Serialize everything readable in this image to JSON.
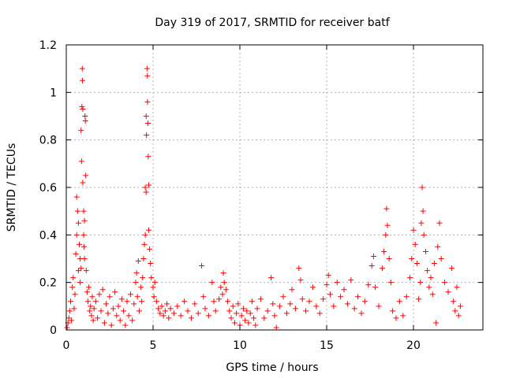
{
  "chart_data": {
    "type": "scatter",
    "title": "Day 319 of 2017, SRMTID for receiver batf",
    "xlabel": "GPS time / hours",
    "ylabel": "SRMTID / TECUs",
    "xlim": [
      0,
      24
    ],
    "ylim": [
      0,
      1.2
    ],
    "xticks": [
      0,
      5,
      10,
      15,
      20
    ],
    "xtick_labels": [
      "0",
      "5",
      "10",
      "15",
      "20"
    ],
    "yticks": [
      0,
      0.2,
      0.4,
      0.6,
      0.8,
      1.0,
      1.2
    ],
    "ytick_labels": [
      "0",
      "0.2",
      "0.4",
      "0.6",
      "0.8",
      "1",
      "1.2"
    ],
    "grid": true,
    "legend": "none",
    "marker": "+",
    "color": "#ff0000",
    "series": [
      {
        "name": "SRMTID",
        "points": [
          [
            0.05,
            0.01
          ],
          [
            0.1,
            0.03
          ],
          [
            0.15,
            0.05
          ],
          [
            0.2,
            0.08
          ],
          [
            0.25,
            0.12
          ],
          [
            0.3,
            0.04
          ],
          [
            0.35,
            0.18
          ],
          [
            0.4,
            0.22
          ],
          [
            0.45,
            0.09
          ],
          [
            0.5,
            0.15
          ],
          [
            0.55,
            0.32
          ],
          [
            0.6,
            0.4
          ],
          [
            0.6,
            0.56
          ],
          [
            0.65,
            0.5
          ],
          [
            0.7,
            0.25
          ],
          [
            0.7,
            0.45
          ],
          [
            0.75,
            0.36
          ],
          [
            0.8,
            0.2
          ],
          [
            0.8,
            0.3
          ],
          [
            0.85,
            0.26
          ],
          [
            0.85,
            0.84
          ],
          [
            0.88,
            0.71
          ],
          [
            0.9,
            0.94
          ],
          [
            0.92,
            1.1
          ],
          [
            0.93,
            1.05
          ],
          [
            0.95,
            0.62
          ],
          [
            0.95,
            0.93
          ],
          [
            1.0,
            0.5
          ],
          [
            1.0,
            0.4
          ],
          [
            1.02,
            0.35
          ],
          [
            1.05,
            0.3
          ],
          [
            1.05,
            0.46
          ],
          [
            1.08,
            0.9
          ],
          [
            1.1,
            0.88
          ],
          [
            1.12,
            0.65
          ],
          [
            1.15,
            0.25
          ],
          [
            1.2,
            0.16
          ],
          [
            1.25,
            0.12
          ],
          [
            1.3,
            0.18
          ],
          [
            1.35,
            0.08
          ],
          [
            1.4,
            0.1
          ],
          [
            1.45,
            0.06
          ],
          [
            1.5,
            0.14
          ],
          [
            1.55,
            0.04
          ],
          [
            1.6,
            0.09
          ],
          [
            1.7,
            0.12
          ],
          [
            1.8,
            0.05
          ],
          [
            1.9,
            0.15
          ],
          [
            2.0,
            0.08
          ],
          [
            2.1,
            0.17
          ],
          [
            2.2,
            0.03
          ],
          [
            2.3,
            0.11
          ],
          [
            2.4,
            0.07
          ],
          [
            2.5,
            0.14
          ],
          [
            2.6,
            0.02
          ],
          [
            2.7,
            0.09
          ],
          [
            2.8,
            0.16
          ],
          [
            2.9,
            0.06
          ],
          [
            3.0,
            0.1
          ],
          [
            3.1,
            0.04
          ],
          [
            3.2,
            0.13
          ],
          [
            3.3,
            0.08
          ],
          [
            3.4,
            0.02
          ],
          [
            3.5,
            0.12
          ],
          [
            3.6,
            0.06
          ],
          [
            3.7,
            0.15
          ],
          [
            3.8,
            0.04
          ],
          [
            3.9,
            0.11
          ],
          [
            4.0,
            0.2
          ],
          [
            4.05,
            0.24
          ],
          [
            4.1,
            0.14
          ],
          [
            4.15,
            0.29
          ],
          [
            4.2,
            0.08
          ],
          [
            4.3,
            0.18
          ],
          [
            4.35,
            0.12
          ],
          [
            4.4,
            0.22
          ],
          [
            4.45,
            0.3
          ],
          [
            4.5,
            0.36
          ],
          [
            4.55,
            0.4
          ],
          [
            4.55,
            0.6
          ],
          [
            4.6,
            0.58
          ],
          [
            4.6,
            0.9
          ],
          [
            4.62,
            0.82
          ],
          [
            4.65,
            1.1
          ],
          [
            4.67,
            1.07
          ],
          [
            4.68,
            0.96
          ],
          [
            4.7,
            0.87
          ],
          [
            4.72,
            0.73
          ],
          [
            4.75,
            0.61
          ],
          [
            4.75,
            0.42
          ],
          [
            4.8,
            0.34
          ],
          [
            4.85,
            0.28
          ],
          [
            4.9,
            0.22
          ],
          [
            5.0,
            0.18
          ],
          [
            5.05,
            0.14
          ],
          [
            5.1,
            0.2
          ],
          [
            5.2,
            0.12
          ],
          [
            5.3,
            0.09
          ],
          [
            5.4,
            0.07
          ],
          [
            5.5,
            0.1
          ],
          [
            5.6,
            0.06
          ],
          [
            5.7,
            0.08
          ],
          [
            5.8,
            0.11
          ],
          [
            5.9,
            0.05
          ],
          [
            6.0,
            0.09
          ],
          [
            6.2,
            0.07
          ],
          [
            6.4,
            0.1
          ],
          [
            6.6,
            0.06
          ],
          [
            6.8,
            0.12
          ],
          [
            7.0,
            0.08
          ],
          [
            7.2,
            0.05
          ],
          [
            7.4,
            0.11
          ],
          [
            7.6,
            0.07
          ],
          [
            7.8,
            0.27
          ],
          [
            7.9,
            0.14
          ],
          [
            8.0,
            0.09
          ],
          [
            8.2,
            0.06
          ],
          [
            8.4,
            0.2
          ],
          [
            8.5,
            0.12
          ],
          [
            8.6,
            0.08
          ],
          [
            8.8,
            0.13
          ],
          [
            8.9,
            0.18
          ],
          [
            9.0,
            0.15
          ],
          [
            9.05,
            0.24
          ],
          [
            9.1,
            0.2
          ],
          [
            9.2,
            0.17
          ],
          [
            9.3,
            0.12
          ],
          [
            9.4,
            0.08
          ],
          [
            9.5,
            0.05
          ],
          [
            9.6,
            0.1
          ],
          [
            9.7,
            0.03
          ],
          [
            9.8,
            0.07
          ],
          [
            9.9,
            0.11
          ],
          [
            10.0,
            0.02
          ],
          [
            10.1,
            0.06
          ],
          [
            10.2,
            0.09
          ],
          [
            10.3,
            0.04
          ],
          [
            10.4,
            0.08
          ],
          [
            10.5,
            0.03
          ],
          [
            10.6,
            0.07
          ],
          [
            10.7,
            0.12
          ],
          [
            10.8,
            0.05
          ],
          [
            10.9,
            0.02
          ],
          [
            11.0,
            0.09
          ],
          [
            11.2,
            0.13
          ],
          [
            11.4,
            0.05
          ],
          [
            11.6,
            0.08
          ],
          [
            11.8,
            0.22
          ],
          [
            11.9,
            0.11
          ],
          [
            12.0,
            0.06
          ],
          [
            12.1,
            0.01
          ],
          [
            12.3,
            0.1
          ],
          [
            12.5,
            0.14
          ],
          [
            12.7,
            0.07
          ],
          [
            12.9,
            0.11
          ],
          [
            13.0,
            0.17
          ],
          [
            13.2,
            0.09
          ],
          [
            13.4,
            0.26
          ],
          [
            13.5,
            0.21
          ],
          [
            13.6,
            0.13
          ],
          [
            13.8,
            0.08
          ],
          [
            14.0,
            0.12
          ],
          [
            14.2,
            0.18
          ],
          [
            14.4,
            0.1
          ],
          [
            14.6,
            0.07
          ],
          [
            14.8,
            0.13
          ],
          [
            15.0,
            0.19
          ],
          [
            15.1,
            0.23
          ],
          [
            15.2,
            0.15
          ],
          [
            15.4,
            0.1
          ],
          [
            15.6,
            0.2
          ],
          [
            15.8,
            0.14
          ],
          [
            16.0,
            0.17
          ],
          [
            16.2,
            0.11
          ],
          [
            16.4,
            0.21
          ],
          [
            16.6,
            0.09
          ],
          [
            16.8,
            0.14
          ],
          [
            17.0,
            0.07
          ],
          [
            17.2,
            0.12
          ],
          [
            17.4,
            0.19
          ],
          [
            17.6,
            0.27
          ],
          [
            17.7,
            0.31
          ],
          [
            17.8,
            0.18
          ],
          [
            18.0,
            0.1
          ],
          [
            18.2,
            0.26
          ],
          [
            18.3,
            0.33
          ],
          [
            18.4,
            0.4
          ],
          [
            18.45,
            0.51
          ],
          [
            18.5,
            0.44
          ],
          [
            18.6,
            0.3
          ],
          [
            18.7,
            0.2
          ],
          [
            18.8,
            0.08
          ],
          [
            19.0,
            0.05
          ],
          [
            19.2,
            0.12
          ],
          [
            19.4,
            0.06
          ],
          [
            19.6,
            0.14
          ],
          [
            19.8,
            0.22
          ],
          [
            19.9,
            0.3
          ],
          [
            20.0,
            0.42
          ],
          [
            20.1,
            0.36
          ],
          [
            20.2,
            0.28
          ],
          [
            20.3,
            0.13
          ],
          [
            20.4,
            0.2
          ],
          [
            20.45,
            0.45
          ],
          [
            20.5,
            0.6
          ],
          [
            20.55,
            0.5
          ],
          [
            20.6,
            0.4
          ],
          [
            20.7,
            0.33
          ],
          [
            20.8,
            0.25
          ],
          [
            20.9,
            0.18
          ],
          [
            21.0,
            0.22
          ],
          [
            21.1,
            0.15
          ],
          [
            21.2,
            0.28
          ],
          [
            21.3,
            0.03
          ],
          [
            21.4,
            0.35
          ],
          [
            21.5,
            0.45
          ],
          [
            21.6,
            0.3
          ],
          [
            21.8,
            0.2
          ],
          [
            22.0,
            0.16
          ],
          [
            22.2,
            0.26
          ],
          [
            22.3,
            0.12
          ],
          [
            22.4,
            0.08
          ],
          [
            22.5,
            0.18
          ],
          [
            22.6,
            0.06
          ],
          [
            22.7,
            0.1
          ]
        ]
      }
    ]
  }
}
